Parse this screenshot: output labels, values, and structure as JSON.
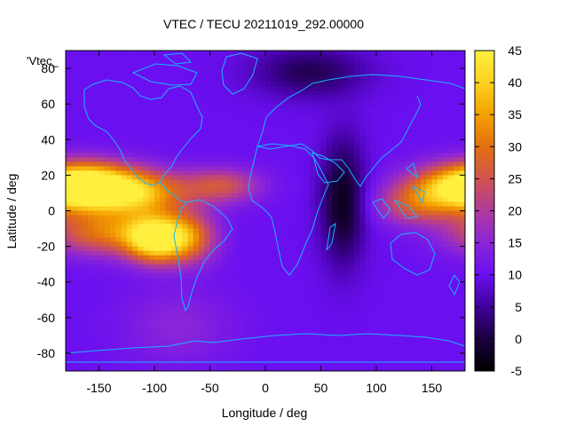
{
  "chart_data": {
    "type": "heatmap",
    "title": "VTEC / TECU 20211019_292.00000",
    "xlabel": "Longitude / deg",
    "ylabel": "Latitude / deg",
    "legend_key": "'Vtec_",
    "xlim": [
      -180,
      180
    ],
    "ylim": [
      -90,
      90
    ],
    "xticks": [
      -150,
      -100,
      -50,
      0,
      50,
      100,
      150
    ],
    "yticks": [
      -80,
      -60,
      -40,
      -20,
      0,
      20,
      40,
      60,
      80
    ],
    "colorbar": {
      "range": [
        -5,
        45
      ],
      "ticks": [
        -5,
        0,
        5,
        10,
        15,
        20,
        25,
        30,
        35,
        40,
        45
      ],
      "palette": [
        "#000000",
        "#1a0040",
        "#40009a",
        "#6a0ff0",
        "#8a25d8",
        "#b03a9c",
        "#d0544e",
        "#e27010",
        "#f3a000",
        "#fcd020",
        "#fff040"
      ]
    },
    "grid": {
      "lon_step_deg": 5,
      "lat_step_deg": 2.5,
      "base_vtec": 10,
      "features": [
        {
          "lon": -160,
          "lat": 14,
          "peak_vtec": 35,
          "lon_sigma": 28,
          "lat_sigma": 9
        },
        {
          "lon": -115,
          "lat": 10,
          "peak_vtec": 26,
          "lon_sigma": 30,
          "lat_sigma": 9
        },
        {
          "lon": -100,
          "lat": -16,
          "peak_vtec": 32,
          "lon_sigma": 18,
          "lat_sigma": 9
        },
        {
          "lon": -70,
          "lat": -15,
          "peak_vtec": 20,
          "lon_sigma": 18,
          "lat_sigma": 10
        },
        {
          "lon": -145,
          "lat": -12,
          "peak_vtec": 20,
          "lon_sigma": 35,
          "lat_sigma": 9
        },
        {
          "lon": -40,
          "lat": 14,
          "peak_vtec": 15,
          "lon_sigma": 25,
          "lat_sigma": 7
        },
        {
          "lon": 165,
          "lat": 13,
          "peak_vtec": 20,
          "lon_sigma": 30,
          "lat_sigma": 9
        },
        {
          "lon": 135,
          "lat": 3,
          "peak_vtec": 13,
          "lon_sigma": 25,
          "lat_sigma": 8
        },
        {
          "lon": 70,
          "lat": 5,
          "peak_vtec": -13,
          "lon_sigma": 14,
          "lat_sigma": 24
        },
        {
          "lon": 40,
          "lat": 78,
          "peak_vtec": -9,
          "lon_sigma": 35,
          "lat_sigma": 10
        },
        {
          "lon": -80,
          "lat": -65,
          "peak_vtec": 5,
          "lon_sigma": 35,
          "lat_sigma": 15
        }
      ]
    }
  }
}
